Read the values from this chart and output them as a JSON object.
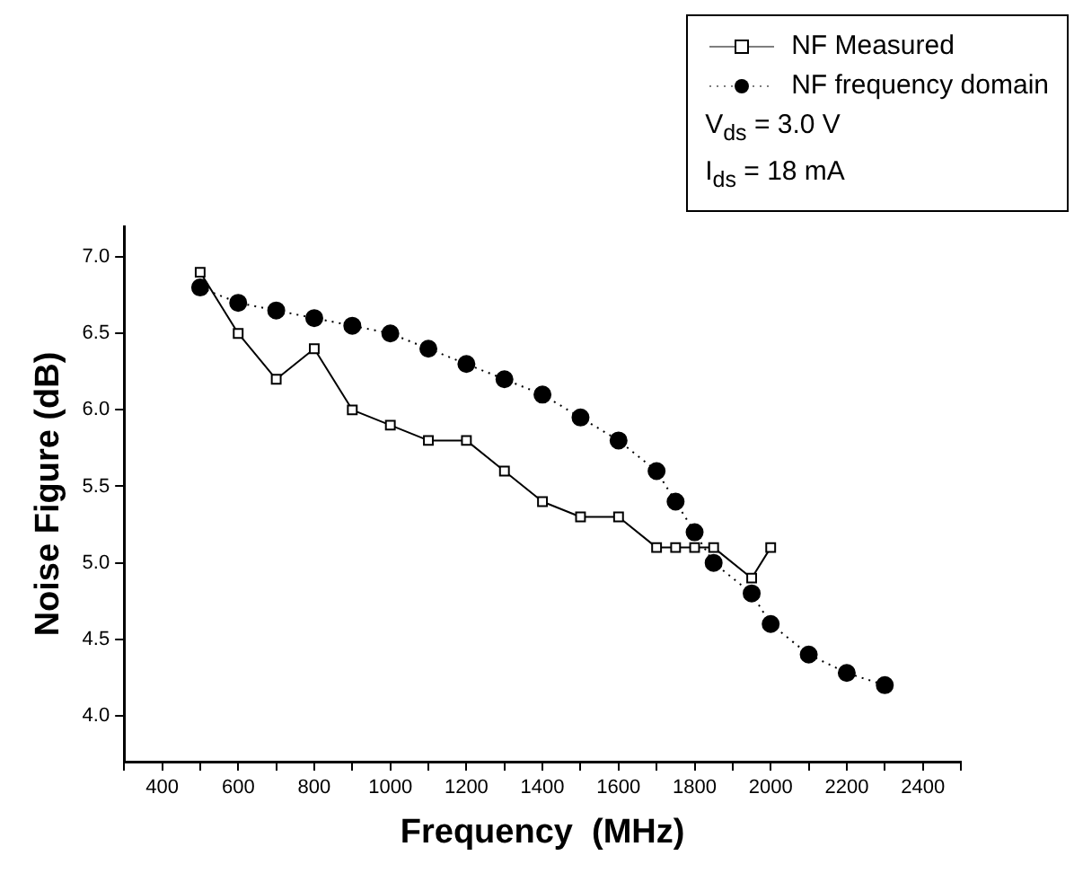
{
  "chart_data": {
    "type": "line",
    "xlabel": "Frequency  (MHz)",
    "ylabel": "Noise Figure (dB)",
    "xlim": [
      300,
      2500
    ],
    "xticks": [
      {
        "value": 300,
        "label": null
      },
      400,
      {
        "value": 500,
        "label": null
      },
      600,
      {
        "value": 700,
        "label": null
      },
      800,
      {
        "value": 900,
        "label": null
      },
      1000,
      {
        "value": 1100,
        "label": null
      },
      1200,
      {
        "value": 1300,
        "label": null
      },
      1400,
      {
        "value": 1500,
        "label": null
      },
      1600,
      {
        "value": 1700,
        "label": null
      },
      1800,
      {
        "value": 1900,
        "label": null
      },
      2000,
      {
        "value": 2100,
        "label": null
      },
      2200,
      {
        "value": 2300,
        "label": null
      },
      2400,
      {
        "value": 2500,
        "label": null
      }
    ],
    "ylim": [
      3.7,
      7.2
    ],
    "yticks": [
      {
        "value": 4,
        "label": "4.0"
      },
      {
        "value": 4.5,
        "label": "4.5"
      },
      {
        "value": 5,
        "label": "5.0"
      },
      {
        "value": 5.5,
        "label": "5.5"
      },
      {
        "value": 6,
        "label": "6.0"
      },
      {
        "value": 6.5,
        "label": "6.5"
      },
      {
        "value": 7,
        "label": "7.0"
      }
    ],
    "grid": false,
    "legend": "top right",
    "annotations": [
      "V$_{ds}$ = 3.0 V",
      "I$_{ds}$ = 18 mA"
    ],
    "series": [
      {
        "name": "NF Measured",
        "color": "#000000",
        "marker": "square",
        "line_style": "solid",
        "x": [
          500,
          600,
          700,
          800,
          900,
          1000,
          1100,
          1200,
          1300,
          1400,
          1500,
          1600,
          1700,
          1750,
          1800,
          1850,
          1950,
          2000
        ],
        "values": [
          6.9,
          6.5,
          6.2,
          6.4,
          6.0,
          5.9,
          5.8,
          5.8,
          5.6,
          5.4,
          5.3,
          5.3,
          5.1,
          5.1,
          5.1,
          5.1,
          4.9,
          5.1
        ]
      },
      {
        "name": "NF frequency domain",
        "color": "#000000",
        "marker": "circle",
        "line_style": "dotted",
        "x": [
          500,
          600,
          700,
          800,
          900,
          1000,
          1100,
          1200,
          1300,
          1400,
          1500,
          1600,
          1700,
          1750,
          1800,
          1850,
          1950,
          2000,
          2100,
          2200,
          2300
        ],
        "values": [
          6.8,
          6.7,
          6.65,
          6.6,
          6.55,
          6.5,
          6.4,
          6.3,
          6.2,
          6.1,
          5.95,
          5.8,
          5.6,
          5.4,
          5.2,
          5.0,
          4.8,
          4.6,
          4.4,
          4.28,
          4.2
        ]
      }
    ]
  }
}
